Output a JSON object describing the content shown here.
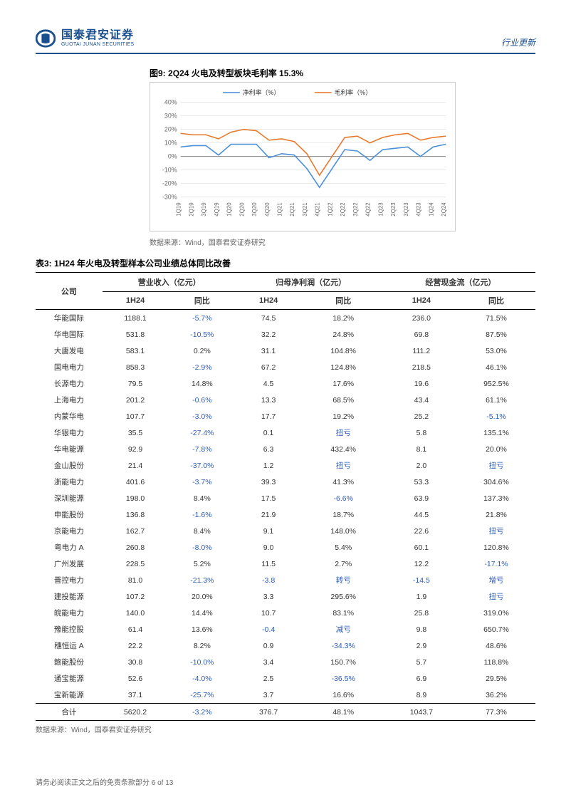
{
  "header": {
    "logo_cn": "国泰君安证券",
    "logo_en": "GUOTAI JUNAN SECURITIES",
    "right": "行业更新"
  },
  "figure": {
    "title_prefix": "图9:",
    "title": "2Q24 火电及转型板块毛利率 15.3%",
    "legend": {
      "s1": "净利率（%）",
      "s2": "毛利率（%）"
    },
    "colors": {
      "s1": "#4a90d9",
      "s2": "#e8792b",
      "grid": "#d9d9d9",
      "axis": "#666666",
      "bg": "#ffffff"
    },
    "y": {
      "min": -30,
      "max": 40,
      "step": 10,
      "suffix": "%"
    },
    "x_labels": [
      "1Q19",
      "2Q19",
      "3Q19",
      "4Q19",
      "1Q20",
      "2Q20",
      "3Q20",
      "4Q20",
      "1Q21",
      "2Q21",
      "3Q21",
      "4Q21",
      "1Q22",
      "2Q22",
      "3Q22",
      "4Q22",
      "1Q23",
      "2Q23",
      "3Q23",
      "4Q23",
      "1Q24",
      "2Q24"
    ],
    "s1_values": [
      7,
      8,
      8,
      1,
      9,
      9,
      9,
      -1,
      2,
      1,
      -9,
      -23,
      -9,
      5,
      4,
      -3,
      5,
      6,
      7,
      0,
      7,
      9
    ],
    "s2_values": [
      17,
      16,
      16,
      13,
      18,
      20,
      19,
      12,
      13,
      11,
      2,
      -14,
      0,
      14,
      15,
      10,
      14,
      16,
      17,
      12,
      14,
      15
    ],
    "source": "数据来源：Wind，国泰君安证券研究"
  },
  "table": {
    "title_prefix": "表3:",
    "title": "1H24 年火电及转型样本公司业绩总体同比改善",
    "group_headers": [
      "公司",
      "营业收入（亿元）",
      "归母净利润（亿元）",
      "经营现金流（亿元）"
    ],
    "sub_headers": [
      "1H24",
      "同比",
      "1H24",
      "同比",
      "1H24",
      "同比"
    ],
    "source": "数据来源：Wind，国泰君安证券研究",
    "rows": [
      {
        "c": "华能国际",
        "r1": "1188.1",
        "r2": "-5.7%",
        "p1": "74.5",
        "p2": "18.2%",
        "f1": "236.0",
        "f2": "71.5%"
      },
      {
        "c": "华电国际",
        "r1": "531.8",
        "r2": "-10.5%",
        "p1": "32.2",
        "p2": "24.8%",
        "f1": "69.8",
        "f2": "87.5%"
      },
      {
        "c": "大唐发电",
        "r1": "583.1",
        "r2": "0.2%",
        "p1": "31.1",
        "p2": "104.8%",
        "f1": "111.2",
        "f2": "53.0%"
      },
      {
        "c": "国电电力",
        "r1": "858.3",
        "r2": "-2.9%",
        "p1": "67.2",
        "p2": "124.8%",
        "f1": "218.5",
        "f2": "46.1%"
      },
      {
        "c": "长源电力",
        "r1": "79.5",
        "r2": "14.8%",
        "p1": "4.5",
        "p2": "17.6%",
        "f1": "19.6",
        "f2": "952.5%"
      },
      {
        "c": "上海电力",
        "r1": "201.2",
        "r2": "-0.6%",
        "p1": "13.3",
        "p2": "68.5%",
        "f1": "43.4",
        "f2": "61.1%"
      },
      {
        "c": "内蒙华电",
        "r1": "107.7",
        "r2": "-3.0%",
        "p1": "17.7",
        "p2": "19.2%",
        "f1": "25.2",
        "f2": "-5.1%"
      },
      {
        "c": "华银电力",
        "r1": "35.5",
        "r2": "-27.4%",
        "p1": "0.1",
        "p2": "扭亏",
        "f1": "5.8",
        "f2": "135.1%"
      },
      {
        "c": "华电能源",
        "r1": "92.9",
        "r2": "-7.8%",
        "p1": "6.3",
        "p2": "432.4%",
        "f1": "8.1",
        "f2": "20.0%"
      },
      {
        "c": "金山股份",
        "r1": "21.4",
        "r2": "-37.0%",
        "p1": "1.2",
        "p2": "扭亏",
        "f1": "2.0",
        "f2": "扭亏"
      },
      {
        "c": "浙能电力",
        "r1": "401.6",
        "r2": "-3.7%",
        "p1": "39.3",
        "p2": "41.3%",
        "f1": "53.3",
        "f2": "304.6%"
      },
      {
        "c": "深圳能源",
        "r1": "198.0",
        "r2": "8.4%",
        "p1": "17.5",
        "p2": "-6.6%",
        "f1": "63.9",
        "f2": "137.3%"
      },
      {
        "c": "申能股份",
        "r1": "136.8",
        "r2": "-1.6%",
        "p1": "21.9",
        "p2": "18.7%",
        "f1": "44.5",
        "f2": "21.8%"
      },
      {
        "c": "京能电力",
        "r1": "162.7",
        "r2": "8.4%",
        "p1": "9.1",
        "p2": "148.0%",
        "f1": "22.6",
        "f2": "扭亏"
      },
      {
        "c": "粤电力 A",
        "r1": "260.8",
        "r2": "-8.0%",
        "p1": "9.0",
        "p2": "5.4%",
        "f1": "60.1",
        "f2": "120.8%"
      },
      {
        "c": "广州发展",
        "r1": "228.5",
        "r2": "5.2%",
        "p1": "11.5",
        "p2": "2.7%",
        "f1": "12.2",
        "f2": "-17.1%"
      },
      {
        "c": "晋控电力",
        "r1": "81.0",
        "r2": "-21.3%",
        "p1": "-3.8",
        "p2": "转亏",
        "f1": "-14.5",
        "f2": "增亏"
      },
      {
        "c": "建投能源",
        "r1": "107.2",
        "r2": "20.0%",
        "p1": "3.3",
        "p2": "295.6%",
        "f1": "1.9",
        "f2": "扭亏"
      },
      {
        "c": "皖能电力",
        "r1": "140.0",
        "r2": "14.4%",
        "p1": "10.7",
        "p2": "83.1%",
        "f1": "25.8",
        "f2": "319.0%"
      },
      {
        "c": "豫能控股",
        "r1": "61.4",
        "r2": "13.6%",
        "p1": "-0.4",
        "p2": "减亏",
        "f1": "9.8",
        "f2": "650.7%"
      },
      {
        "c": "穗恒运 A",
        "r1": "22.2",
        "r2": "8.2%",
        "p1": "0.9",
        "p2": "-34.3%",
        "f1": "2.9",
        "f2": "48.6%"
      },
      {
        "c": "赣能股份",
        "r1": "30.8",
        "r2": "-10.0%",
        "p1": "3.4",
        "p2": "150.7%",
        "f1": "5.7",
        "f2": "118.8%"
      },
      {
        "c": "通宝能源",
        "r1": "52.6",
        "r2": "-4.0%",
        "p1": "2.5",
        "p2": "-36.5%",
        "f1": "6.9",
        "f2": "29.5%"
      },
      {
        "c": "宝新能源",
        "r1": "37.1",
        "r2": "-25.7%",
        "p1": "3.7",
        "p2": "16.6%",
        "f1": "8.9",
        "f2": "36.2%"
      }
    ],
    "total": {
      "c": "合计",
      "r1": "5620.2",
      "r2": "-3.2%",
      "p1": "376.7",
      "p2": "48.1%",
      "f1": "1043.7",
      "f2": "77.3%"
    }
  },
  "footer": "请务必阅读正文之后的免责条款部分 6 of 13"
}
